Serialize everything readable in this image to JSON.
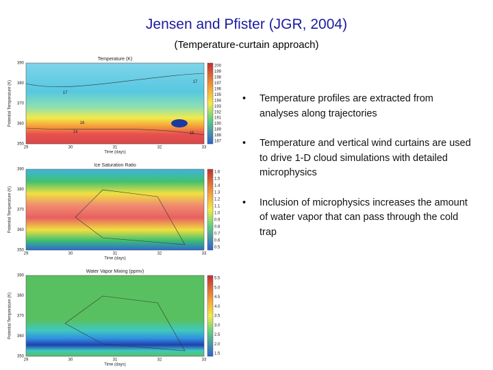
{
  "header": {
    "title": "Jensen and Pfister (JGR, 2004)",
    "subtitle": "(Temperature-curtain approach)"
  },
  "figure": {
    "panels": [
      {
        "title": "Temperature (K)",
        "x_label": "Time (days)",
        "y_label": "Potential Temperature (K)",
        "x_ticks": [
          "29",
          "30",
          "31",
          "32",
          "33"
        ],
        "y_ticks": [
          "390",
          "380",
          "370",
          "360",
          "350"
        ],
        "colorbar_ticks": [
          "200",
          "199",
          "198",
          "197",
          "196",
          "195",
          "194",
          "193",
          "192",
          "191",
          "190",
          "189",
          "188",
          "187"
        ],
        "contour_labels": [
          "17",
          "17",
          "16",
          "15",
          "14"
        ]
      },
      {
        "title": "Ice Saturation Ratio",
        "x_label": "Time (days)",
        "y_label": "Potential Temperature (K)",
        "x_ticks": [
          "29",
          "30",
          "31",
          "32",
          "33"
        ],
        "y_ticks": [
          "390",
          "380",
          "370",
          "360",
          "350"
        ],
        "colorbar_ticks": [
          "1.6",
          "1.5",
          "1.4",
          "1.3",
          "1.2",
          "1.1",
          "1.0",
          "0.9",
          "0.8",
          "0.7",
          "0.6",
          "0.5"
        ],
        "contour_labels": []
      },
      {
        "title": "Water Vapor Mixing (ppmv)",
        "x_label": "Time (days)",
        "y_label": "Potential Temperature (K)",
        "x_ticks": [
          "29",
          "30",
          "31",
          "32",
          "33"
        ],
        "y_ticks": [
          "390",
          "380",
          "370",
          "360",
          "350"
        ],
        "colorbar_ticks": [
          "5.5",
          "5.0",
          "4.5",
          "4.0",
          "3.5",
          "3.0",
          "2.5",
          "2.0",
          "1.5"
        ],
        "contour_labels": []
      }
    ]
  },
  "bullets": [
    "Temperature profiles are extracted from analyses along trajectories",
    "Temperature and vertical wind curtains are used to drive 1-D cloud simulations with detailed microphysics",
    "Inclusion of microphysics increases the amount of water vapor that can pass through the cold trap"
  ]
}
